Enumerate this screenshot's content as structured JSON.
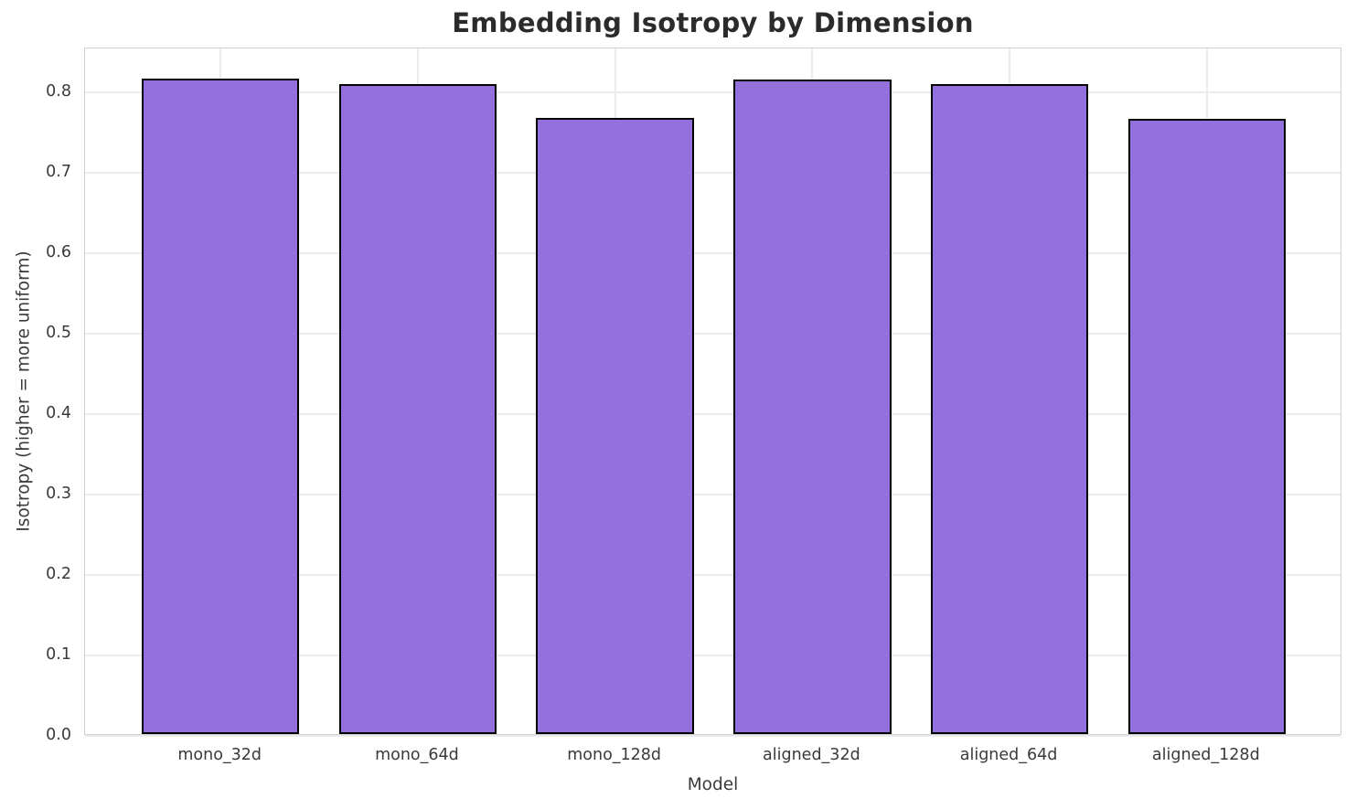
{
  "chart_data": {
    "type": "bar",
    "title": "Embedding Isotropy by Dimension",
    "xlabel": "Model",
    "ylabel": "Isotropy (higher = more uniform)",
    "categories": [
      "mono_32d",
      "mono_64d",
      "mono_128d",
      "aligned_32d",
      "aligned_64d",
      "aligned_128d"
    ],
    "values": [
      0.815,
      0.808,
      0.766,
      0.814,
      0.808,
      0.765
    ],
    "ylim": [
      0,
      0.855
    ],
    "yticks": [
      0.0,
      0.1,
      0.2,
      0.3,
      0.4,
      0.5,
      0.6,
      0.7,
      0.8
    ],
    "ytick_labels": [
      "0.0",
      "0.1",
      "0.2",
      "0.3",
      "0.4",
      "0.5",
      "0.6",
      "0.7",
      "0.8"
    ],
    "grid": true,
    "legend_position": "none",
    "colors": {
      "bar_fill": "#9370db",
      "bar_edge": "#000000",
      "grid_line": "#ebebeb",
      "spine": "#d0d0d0",
      "tick_text": "#3a3a3a",
      "axis_label_text": "#3a3a3a",
      "title_text": "#2b2b2b"
    }
  }
}
